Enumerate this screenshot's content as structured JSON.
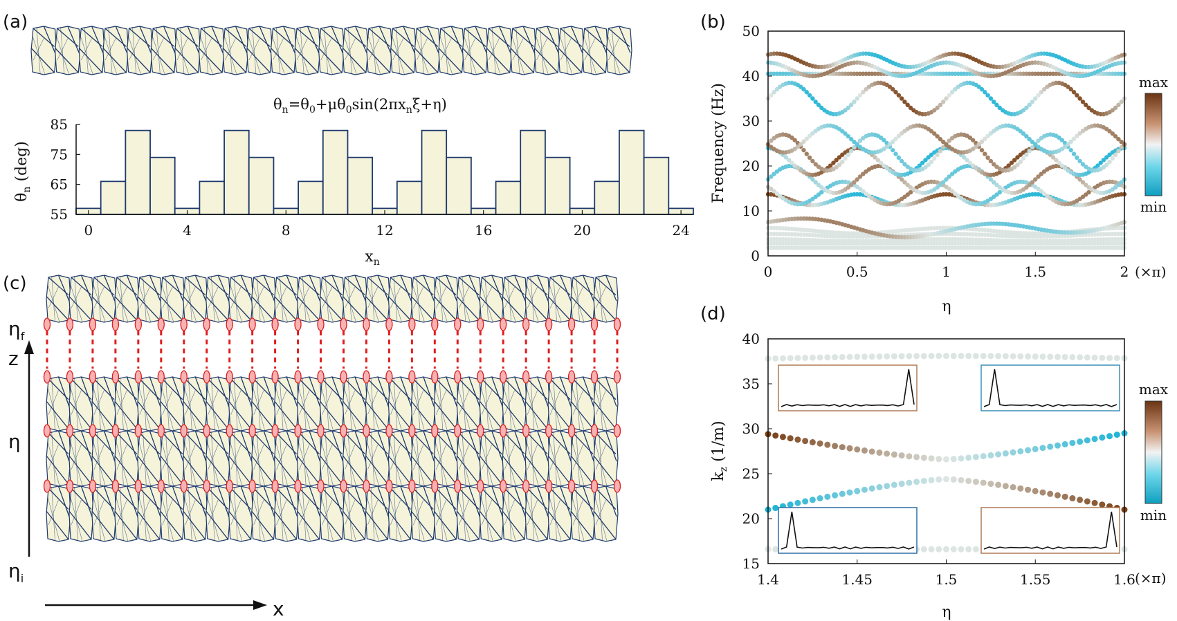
{
  "panel_labels": {
    "a": "(a)",
    "b": "(b)",
    "c": "(c)",
    "d": "(d)"
  },
  "colors": {
    "cell_fill": "#f5f3d9",
    "cell_stroke": "#1e3a6e",
    "connector": "#e11d1d",
    "brown": "#7a3f14",
    "cyan": "#19b3d6",
    "neutral": "#dde5e2"
  },
  "panel_a": {
    "equation": "θn=θ0+μθ0sin(2πxnξ+η)",
    "chart_data": {
      "type": "bar",
      "xlabel": "xn",
      "ylabel": "θn (deg)",
      "x_ticks": [
        "0",
        "4",
        "8",
        "12",
        "16",
        "20",
        "24"
      ],
      "y_ticks": [
        "55",
        "65",
        "75",
        "85"
      ],
      "xlim": [
        -0.5,
        24.5
      ],
      "ylim": [
        55,
        85
      ],
      "x": [
        0,
        1,
        2,
        3,
        4,
        5,
        6,
        7,
        8,
        9,
        10,
        11,
        12,
        13,
        14,
        15,
        16,
        17,
        18,
        19,
        20,
        21,
        22,
        23,
        24
      ],
      "values": [
        57,
        66,
        83,
        74,
        57,
        66,
        83,
        74,
        57,
        66,
        83,
        74,
        57,
        66,
        83,
        74,
        57,
        66,
        83,
        74,
        57,
        66,
        83,
        74,
        57
      ]
    }
  },
  "panel_b": {
    "chart_data": {
      "type": "scatter",
      "xlabel": "η",
      "ylabel": "Frequency (Hz)",
      "x_ticks": [
        "0",
        "0.5",
        "1",
        "1.5",
        "2"
      ],
      "x_unit": "(×π)",
      "y_ticks": [
        "0",
        "10",
        "20",
        "30",
        "40",
        "50"
      ],
      "xlim": [
        0,
        2
      ],
      "ylim": [
        0,
        50
      ],
      "colorbar": {
        "max": "max",
        "min": "min"
      },
      "series_description": "Frequency bands vs phase η, colored by localization (brown = max, cyan = min, grey = extended)"
    }
  },
  "panel_c": {
    "top_label": "ηf",
    "bottom_label": "ηi",
    "middle_label": "η",
    "axis_z": "z",
    "axis_x": "x"
  },
  "panel_d": {
    "chart_data": {
      "type": "scatter",
      "xlabel": "η",
      "ylabel": "kz (1/m)",
      "x_ticks": [
        "1.4",
        "1.45",
        "1.5",
        "1.55",
        "1.6"
      ],
      "x_unit": "(×π)",
      "y_ticks": [
        "15",
        "20",
        "25",
        "30",
        "35",
        "40"
      ],
      "xlim": [
        1.4,
        1.6
      ],
      "ylim": [
        15,
        40
      ],
      "colorbar": {
        "max": "max",
        "min": "min"
      },
      "series": [
        {
          "name": "upper branch",
          "x_start": 1.4,
          "y_start": 29.4,
          "x_mid": 1.5,
          "y_mid": 26.6,
          "x_end": 1.6,
          "y_end": 29.5
        },
        {
          "name": "lower branch",
          "x_start": 1.4,
          "y_start": 21.0,
          "x_mid": 1.5,
          "y_mid": 24.4,
          "x_end": 1.6,
          "y_end": 21.0
        },
        {
          "name": "top band",
          "y": 37.8
        },
        {
          "name": "bottom band",
          "y": 16.7
        }
      ]
    }
  }
}
